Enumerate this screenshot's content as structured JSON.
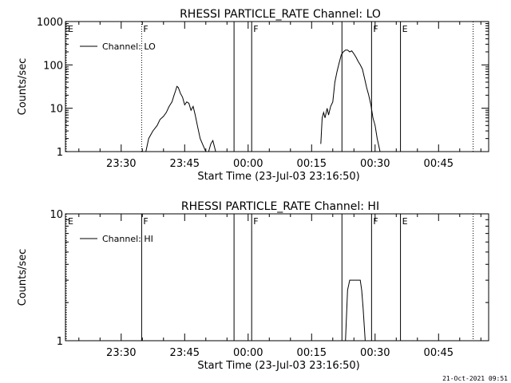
{
  "chart_data": [
    {
      "type": "line",
      "title": "RHESSI PARTICLE_RATE Channel: LO",
      "xlabel": "Start Time (23-Jul-03 23:16:50)",
      "ylabel": "Counts/sec",
      "y_scale": "log",
      "ylim": [
        1,
        1000
      ],
      "xlim": [
        "23:16:50",
        "00:56:50"
      ],
      "x_ticks": [
        "23:30",
        "23:45",
        "00:00",
        "00:15",
        "00:30",
        "00:45"
      ],
      "y_ticks": [
        "1",
        "10",
        "100",
        "1000"
      ],
      "legend": {
        "label": "Channel: LO",
        "placement": "top-left"
      },
      "series": [
        {
          "name": "Channel: LO",
          "segments": [
            {
              "x": [
                "23:35:50",
                "23:36:30",
                "23:37:30",
                "23:38:30",
                "23:39:10",
                "23:40:00",
                "23:40:40",
                "23:41:20",
                "23:42:00",
                "23:42:30",
                "23:42:50",
                "23:43:10",
                "23:43:30",
                "23:44:00",
                "23:44:30",
                "23:45:00",
                "23:45:30",
                "23:46:00",
                "23:46:30",
                "23:47:00",
                "23:47:30",
                "23:48:00",
                "23:48:40",
                "23:49:20",
                "23:50:00"
              ],
              "y": [
                1,
                2,
                3,
                4,
                5.5,
                6.5,
                8,
                11,
                14,
                20,
                25,
                32,
                30,
                22,
                18,
                12,
                14,
                13,
                9,
                11,
                7,
                4,
                2,
                1.4,
                1
              ]
            },
            {
              "x": [
                "23:50:40",
                "23:51:10",
                "23:51:40",
                "23:52:20"
              ],
              "y": [
                1,
                1.5,
                1.8,
                1
              ]
            },
            {
              "x": [
                "00:17:10",
                "00:17:30",
                "00:17:50",
                "00:18:10",
                "00:18:40",
                "00:19:00",
                "00:19:30",
                "00:20:00",
                "00:20:30",
                "00:21:00",
                "00:21:30",
                "00:22:00",
                "00:22:30",
                "00:23:00",
                "00:23:30",
                "00:24:00",
                "00:24:30",
                "00:25:00",
                "00:25:30",
                "00:26:00",
                "00:26:30",
                "00:27:00",
                "00:27:30",
                "00:28:00",
                "00:28:30",
                "00:29:00",
                "00:29:30",
                "00:30:00",
                "00:30:30",
                "00:31:10"
              ],
              "y": [
                1.5,
                6,
                8,
                6,
                10,
                7,
                11,
                14,
                40,
                70,
                110,
                170,
                200,
                220,
                220,
                200,
                210,
                180,
                150,
                120,
                100,
                80,
                50,
                30,
                20,
                12,
                6,
                4,
                2,
                1
              ]
            }
          ]
        }
      ],
      "markers": [
        {
          "time": "23:16:50",
          "label": "E",
          "style": "dotted"
        },
        {
          "time": "23:34:50",
          "label": "F",
          "style": "dotted"
        },
        {
          "time": "23:56:40",
          "label": "",
          "style": "solid"
        },
        {
          "time": "00:00:50",
          "label": "F",
          "style": "solid"
        },
        {
          "time": "00:22:10",
          "label": "",
          "style": "solid"
        },
        {
          "time": "00:29:10",
          "label": "F",
          "style": "solid"
        },
        {
          "time": "00:36:00",
          "label": "E",
          "style": "solid"
        },
        {
          "time": "00:53:10",
          "label": "",
          "style": "dotted"
        }
      ]
    },
    {
      "type": "line",
      "title": "RHESSI PARTICLE_RATE Channel: HI",
      "xlabel": "Start Time (23-Jul-03 23:16:50)",
      "ylabel": "Counts/sec",
      "y_scale": "log",
      "ylim": [
        1,
        10
      ],
      "xlim": [
        "23:16:50",
        "00:56:50"
      ],
      "x_ticks": [
        "23:30",
        "23:45",
        "00:00",
        "00:15",
        "00:30",
        "00:45"
      ],
      "y_ticks": [
        "1",
        "10"
      ],
      "legend": {
        "label": "Channel: HI",
        "placement": "top-left"
      },
      "series": [
        {
          "name": "Channel: HI",
          "segments": [
            {
              "x": [
                "00:23:00",
                "00:23:30",
                "00:24:00",
                "00:26:30",
                "00:26:50",
                "00:27:10",
                "00:27:40"
              ],
              "y": [
                1,
                2.5,
                3,
                3,
                2.5,
                1.8,
                1
              ]
            }
          ]
        }
      ],
      "markers": [
        {
          "time": "23:16:50",
          "label": "E",
          "style": "dotted"
        },
        {
          "time": "23:34:50",
          "label": "F",
          "style": "solid"
        },
        {
          "time": "23:56:40",
          "label": "",
          "style": "solid"
        },
        {
          "time": "00:00:50",
          "label": "F",
          "style": "solid"
        },
        {
          "time": "00:22:10",
          "label": "",
          "style": "solid"
        },
        {
          "time": "00:29:10",
          "label": "F",
          "style": "solid"
        },
        {
          "time": "00:36:00",
          "label": "E",
          "style": "solid"
        },
        {
          "time": "00:53:10",
          "label": "",
          "style": "dotted"
        }
      ]
    }
  ],
  "footer": "21-Oct-2021 09:51"
}
